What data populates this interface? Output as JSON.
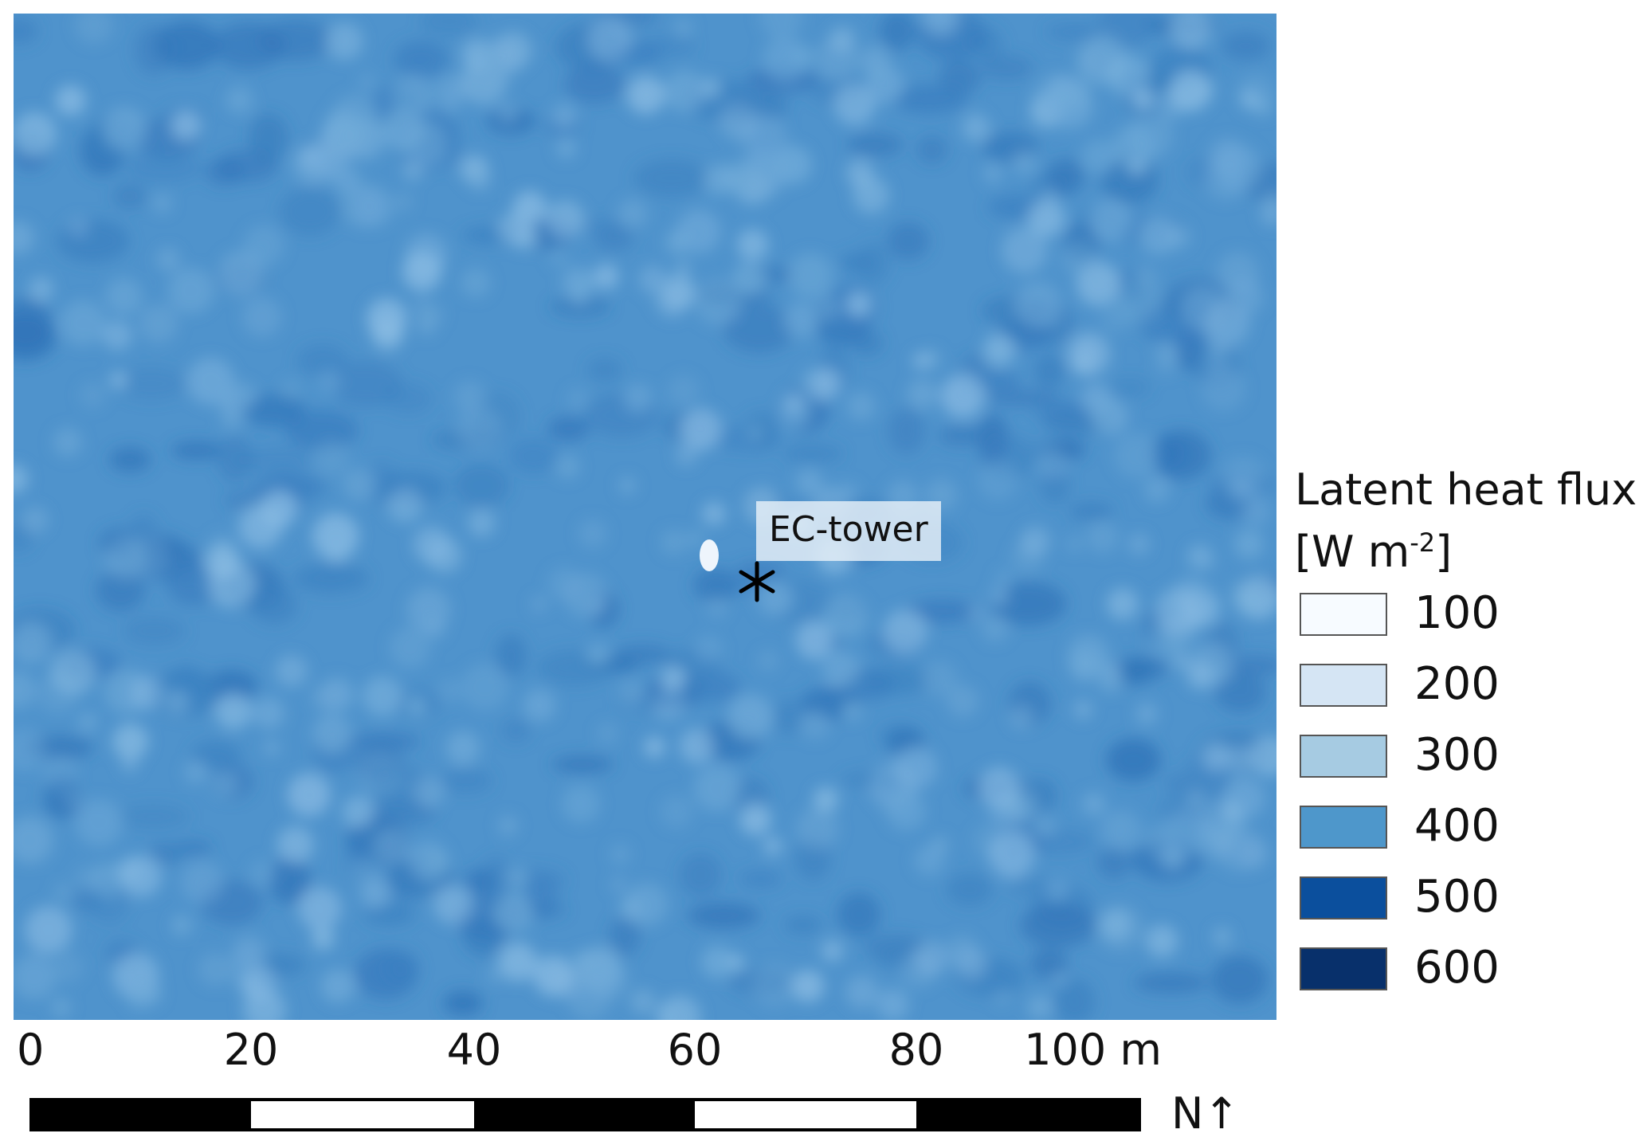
{
  "map": {
    "annotation": "EC-tower",
    "marker_icon": "asterisk-icon"
  },
  "legend": {
    "title_line1": "Latent heat flux",
    "title_unit_prefix": "[W m",
    "title_unit_exp": "-2",
    "title_unit_suffix": "]",
    "items": [
      {
        "label": "100",
        "color": "#f7fbff"
      },
      {
        "label": "200",
        "color": "#d5e5f4"
      },
      {
        "label": "300",
        "color": "#a6cbe2"
      },
      {
        "label": "400",
        "color": "#4e97cb"
      },
      {
        "label": "500",
        "color": "#0b4f9d"
      },
      {
        "label": "600",
        "color": "#08306b"
      }
    ]
  },
  "scale_bar": {
    "ticks": [
      "0",
      "20",
      "40",
      "60",
      "80",
      "100 m"
    ],
    "north_label": "N↑"
  }
}
